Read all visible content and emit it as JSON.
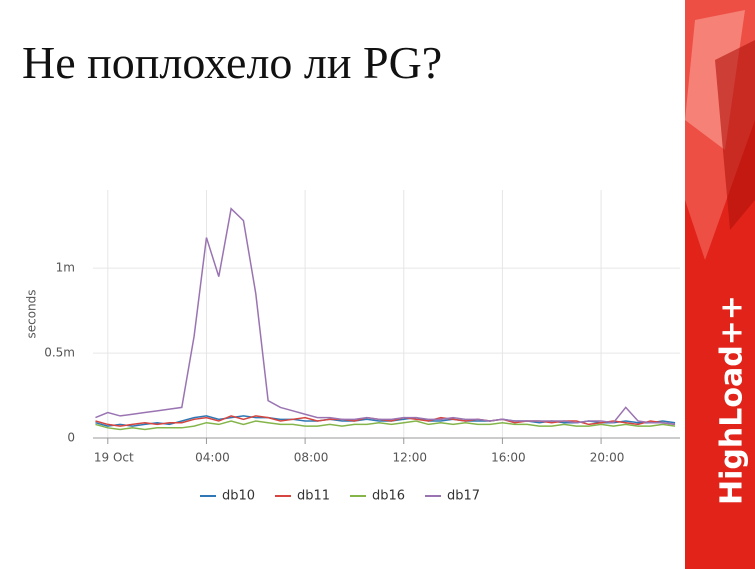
{
  "title": "Не поплохело ли PG?",
  "branding": "HighLoad++",
  "chart_data": {
    "type": "line",
    "y_label": "seconds",
    "x": [
      -0.5,
      0,
      0.5,
      1,
      1.5,
      2,
      2.5,
      3,
      3.5,
      4,
      4.5,
      5,
      5.5,
      6,
      6.5,
      7,
      7.5,
      8,
      8.5,
      9,
      9.5,
      10,
      10.5,
      11,
      11.5,
      12,
      12.5,
      13,
      13.5,
      14,
      14.5,
      15,
      15.5,
      16,
      16.5,
      17,
      17.5,
      18,
      18.5,
      19,
      19.5,
      20,
      20.5,
      21,
      21.5,
      22,
      22.5,
      23
    ],
    "xlim": [
      -0.6,
      23.2
    ],
    "xticks": [
      {
        "value": 0,
        "label": "19 Oct"
      },
      {
        "value": 4,
        "label": "04:00"
      },
      {
        "value": 8,
        "label": "08:00"
      },
      {
        "value": 12,
        "label": "12:00"
      },
      {
        "value": 16,
        "label": "16:00"
      },
      {
        "value": 20,
        "label": "20:00"
      }
    ],
    "ylim": [
      0,
      0.00146
    ],
    "yticks": [
      0,
      {
        "value": 0.0005,
        "label": "0.5m"
      },
      {
        "value": 0.001,
        "label": "1m"
      }
    ],
    "grid": true,
    "legend": "bottom",
    "series": [
      {
        "name": "db10",
        "color": "#2f78b5",
        "values": [
          9e-05,
          7e-05,
          8e-05,
          7e-05,
          8e-05,
          9e-05,
          8e-05,
          0.0001,
          0.00012,
          0.00013,
          0.00011,
          0.00012,
          0.00013,
          0.00012,
          0.00012,
          0.00011,
          0.00011,
          0.0001,
          0.0001,
          0.00011,
          0.0001,
          0.0001,
          0.00011,
          0.0001,
          0.0001,
          0.00011,
          0.00012,
          0.0001,
          0.0001,
          0.00011,
          0.0001,
          0.0001,
          0.0001,
          0.00011,
          0.0001,
          0.0001,
          9e-05,
          0.0001,
          9e-05,
          9e-05,
          0.0001,
          9e-05,
          9e-05,
          0.0001,
          9e-05,
          9e-05,
          0.0001,
          9e-05
        ]
      },
      {
        "name": "db11",
        "color": "#d6453f",
        "values": [
          0.0001,
          8e-05,
          7e-05,
          8e-05,
          9e-05,
          8e-05,
          9e-05,
          9e-05,
          0.00011,
          0.00012,
          0.0001,
          0.00013,
          0.00011,
          0.00013,
          0.00012,
          0.0001,
          0.00011,
          0.00012,
          0.0001,
          0.00011,
          0.00011,
          0.0001,
          0.00012,
          0.00011,
          0.0001,
          0.00012,
          0.00011,
          0.0001,
          0.00012,
          0.00011,
          0.0001,
          0.00011,
          0.0001,
          0.00011,
          9e-05,
          0.0001,
          0.0001,
          9e-05,
          0.0001,
          0.0001,
          8e-05,
          9e-05,
          0.0001,
          9e-05,
          8e-05,
          0.0001,
          9e-05,
          8e-05
        ]
      },
      {
        "name": "db16",
        "color": "#84b54a",
        "values": [
          8e-05,
          6e-05,
          5e-05,
          6e-05,
          5e-05,
          6e-05,
          6e-05,
          6e-05,
          7e-05,
          9e-05,
          8e-05,
          0.0001,
          8e-05,
          0.0001,
          9e-05,
          8e-05,
          8e-05,
          7e-05,
          7e-05,
          8e-05,
          7e-05,
          8e-05,
          8e-05,
          9e-05,
          8e-05,
          9e-05,
          0.0001,
          8e-05,
          9e-05,
          8e-05,
          9e-05,
          8e-05,
          8e-05,
          9e-05,
          8e-05,
          8e-05,
          7e-05,
          7e-05,
          8e-05,
          7e-05,
          7e-05,
          8e-05,
          7e-05,
          8e-05,
          7e-05,
          7e-05,
          8e-05,
          7e-05
        ]
      },
      {
        "name": "db17",
        "color": "#9a74b2",
        "values": [
          0.00012,
          0.00015,
          0.00013,
          0.00014,
          0.00015,
          0.00016,
          0.00017,
          0.00018,
          0.0006,
          0.00118,
          0.00095,
          0.00135,
          0.00128,
          0.00085,
          0.00022,
          0.00018,
          0.00016,
          0.00014,
          0.00012,
          0.00012,
          0.00011,
          0.00011,
          0.00012,
          0.00011,
          0.00011,
          0.00012,
          0.00012,
          0.00011,
          0.00011,
          0.00012,
          0.00011,
          0.00011,
          0.0001,
          0.00011,
          0.0001,
          0.0001,
          0.0001,
          0.0001,
          0.0001,
          9e-05,
          0.0001,
          0.0001,
          9e-05,
          0.00018,
          0.0001,
          9e-05,
          9e-05,
          8e-05
        ]
      }
    ]
  }
}
